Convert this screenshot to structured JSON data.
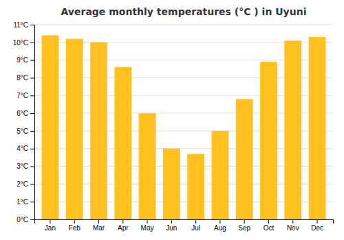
{
  "chart_data": {
    "type": "bar",
    "title": "Average monthly temperatures (°C ) in Uyuni",
    "categories": [
      "Jan",
      "Feb",
      "Mar",
      "Apr",
      "May",
      "Jun",
      "Jul",
      "Aug",
      "Sep",
      "Oct",
      "Nov",
      "Dec"
    ],
    "values": [
      10.4,
      10.2,
      10.0,
      8.6,
      6.0,
      4.0,
      3.7,
      5.0,
      6.8,
      8.9,
      10.1,
      10.3
    ],
    "color": "#FFC020",
    "ylim": [
      0,
      11
    ],
    "yticks": [
      {
        "value": 0,
        "label": "0°C"
      },
      {
        "value": 1,
        "label": "1°C"
      },
      {
        "value": 2,
        "label": "2°C"
      },
      {
        "value": 3,
        "label": "3°C"
      },
      {
        "value": 4,
        "label": "4°C"
      },
      {
        "value": 5,
        "label": "5°C"
      },
      {
        "value": 6,
        "label": "6°C"
      },
      {
        "value": 7,
        "label": "7°C"
      },
      {
        "value": 8,
        "label": "8°C"
      },
      {
        "value": 9,
        "label": "9°C"
      },
      {
        "value": 10,
        "label": "10°C"
      },
      {
        "value": 11,
        "label": "11°C"
      }
    ],
    "grid": true
  }
}
